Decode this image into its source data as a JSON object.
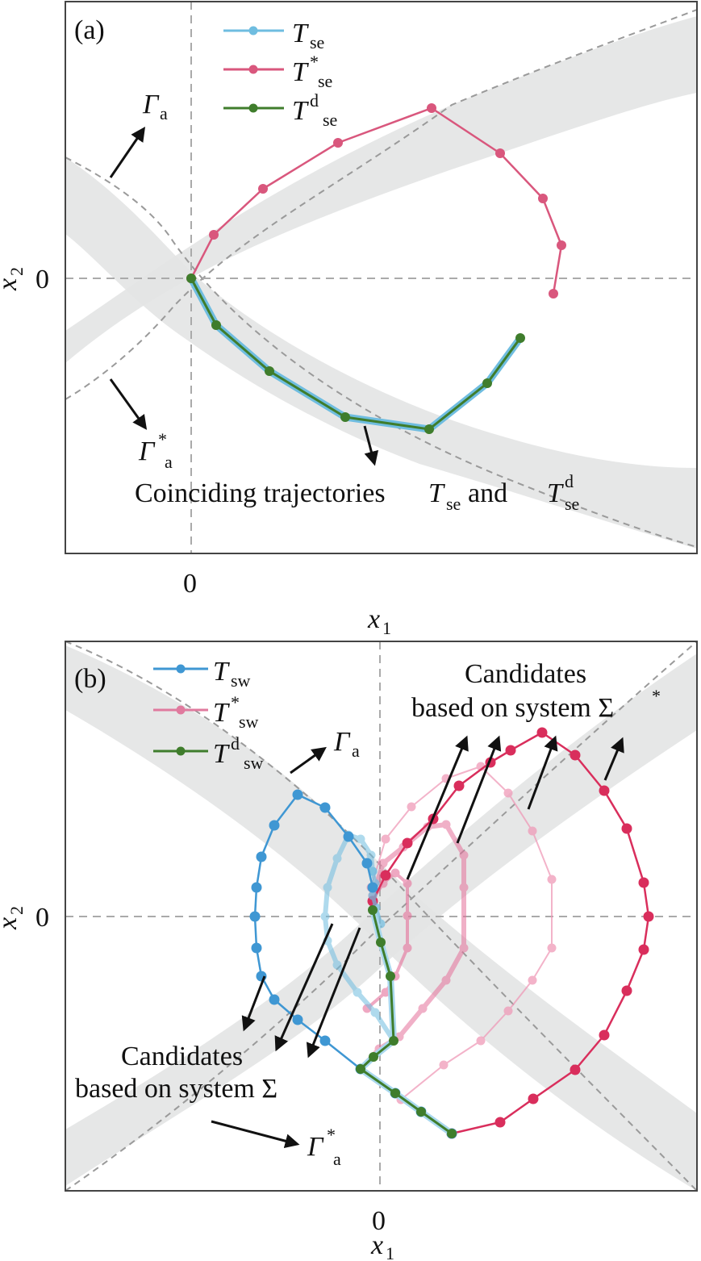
{
  "panel_a": {
    "label": "(a)",
    "legend": [
      {
        "sym": "T",
        "sup": "",
        "sub": "se",
        "color": "#6fbde0"
      },
      {
        "sym": "T",
        "sup": "*",
        "sub": "se",
        "color": "#d9577d"
      },
      {
        "sym": "T",
        "sup": "d",
        "sub": "se",
        "color": "#3f7d2c"
      }
    ],
    "gamma_label": {
      "sym": "Γ",
      "sup": "",
      "sub": "a"
    },
    "gamma_star_label": {
      "sym": "Γ",
      "sup": "*",
      "sub": "a"
    },
    "annotation": {
      "text": "Coinciding trajectories ",
      "t1": "T",
      "t1_sub": "se",
      "mid": " and ",
      "t2": "T",
      "t2_sup": "d",
      "t2_sub": "se"
    },
    "xtick": "0",
    "ytick": "0",
    "xlabel": {
      "sym": "x",
      "sub": "1"
    },
    "ylabel": {
      "sym": "x",
      "sub": "2"
    }
  },
  "panel_b": {
    "label": "(b)",
    "legend": [
      {
        "sym": "T",
        "sup": "",
        "sub": "sw",
        "color": "#3f97d3"
      },
      {
        "sym": "T",
        "sup": "*",
        "sub": "sw",
        "color": "#e07a9e"
      },
      {
        "sym": "T",
        "sup": "d",
        "sub": "sw",
        "color": "#3f7d2c"
      }
    ],
    "gamma_label": {
      "sym": "Γ",
      "sup": "",
      "sub": "a"
    },
    "gamma_star_label": {
      "sym": "Γ",
      "sup": "*",
      "sub": "a"
    },
    "candidates_star": {
      "line1": "Candidates",
      "line2": "based on system Σ",
      "sup": "*"
    },
    "candidates": {
      "line1": "Candidates",
      "line2": "based on system Σ"
    },
    "xtick": "0",
    "ytick": "0",
    "xlabel": {
      "sym": "x",
      "sub": "1"
    },
    "ylabel": {
      "sym": "x",
      "sub": "2"
    }
  },
  "colors": {
    "blue_light": "#6fbde0",
    "blue": "#3f97d3",
    "pink": "#d9577d",
    "pink_light": "#ef9ab8",
    "green": "#3f7d2c",
    "band": "#e3e4e4",
    "dash": "#9a9a9a"
  }
}
